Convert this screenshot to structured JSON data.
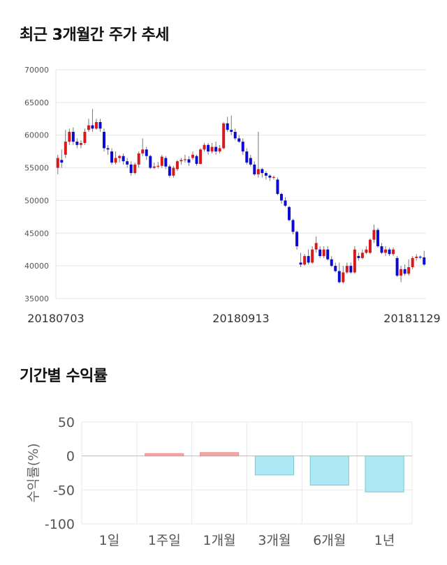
{
  "titles": {
    "price_trend": "최근 3개월간 주가 추세",
    "period_returns": "기간별 수익률"
  },
  "colors": {
    "up": "#d7191c",
    "down": "#0a0ad0",
    "bar_positive": "#f3a6a6",
    "bar_negative": "#ade8f4",
    "bar_negative_stroke": "#7cc8d6"
  },
  "chart_data": [
    {
      "type": "candlestick",
      "title": "최근 3개월간 주가 추세",
      "y_ticks": [
        "70000",
        "65000",
        "60000",
        "55000",
        "50000",
        "45000",
        "40000",
        "35000"
      ],
      "ylim": [
        35000,
        70000
      ],
      "x_labels": [
        "20180703",
        "20180913",
        "20181129"
      ],
      "grid": true,
      "candles": [
        [
          55000,
          56500,
          54000,
          57000
        ],
        [
          56200,
          55800,
          55000,
          57800
        ],
        [
          57000,
          59000,
          56500,
          60800
        ],
        [
          59000,
          60500,
          58500,
          61000
        ],
        [
          60500,
          59000,
          58500,
          61200
        ],
        [
          59000,
          58500,
          58000,
          59500
        ],
        [
          58500,
          58800,
          58000,
          59200
        ],
        [
          58800,
          60500,
          58500,
          61000
        ],
        [
          60800,
          61500,
          60500,
          62500
        ],
        [
          61500,
          61000,
          60500,
          64000
        ],
        [
          61000,
          62000,
          60800,
          62500
        ],
        [
          62000,
          61000,
          60500,
          62500
        ],
        [
          60500,
          58000,
          57500,
          61000
        ],
        [
          58000,
          57800,
          57000,
          58500
        ],
        [
          57500,
          55800,
          55500,
          58000
        ],
        [
          55800,
          56500,
          55500,
          57500
        ],
        [
          56500,
          56800,
          55800,
          57000
        ],
        [
          56800,
          56000,
          55500,
          57200
        ],
        [
          56000,
          55500,
          55000,
          56500
        ],
        [
          55500,
          54200,
          53800,
          56000
        ],
        [
          54200,
          55500,
          54000,
          55800
        ],
        [
          55500,
          57200,
          55000,
          57500
        ],
        [
          57200,
          57800,
          56800,
          59500
        ],
        [
          57800,
          56800,
          56200,
          58200
        ],
        [
          56800,
          55000,
          54800,
          57000
        ],
        [
          55000,
          55200,
          54800,
          55800
        ],
        [
          55200,
          55300,
          54900,
          55900
        ],
        [
          55300,
          56700,
          55000,
          57000
        ],
        [
          56500,
          55200,
          54800,
          56800
        ],
        [
          55200,
          53800,
          53500,
          55500
        ],
        [
          53800,
          55000,
          53500,
          55300
        ],
        [
          54800,
          56000,
          54500,
          56200
        ],
        [
          56000,
          56200,
          55500,
          56500
        ],
        [
          56200,
          56300,
          55800,
          57000
        ],
        [
          56300,
          55800,
          55300,
          56800
        ],
        [
          56500,
          57000,
          56200,
          57500
        ],
        [
          56800,
          55600,
          55300,
          57000
        ],
        [
          55600,
          57800,
          55500,
          58000
        ],
        [
          57800,
          58500,
          57500,
          58800
        ],
        [
          58500,
          57500,
          57000,
          58800
        ],
        [
          57500,
          58200,
          57200,
          58800
        ],
        [
          58200,
          57500,
          57000,
          59000
        ],
        [
          57500,
          58000,
          57200,
          58500
        ],
        [
          58000,
          61800,
          57800,
          62000
        ],
        [
          61800,
          60800,
          60500,
          62800
        ],
        [
          60800,
          60500,
          60000,
          63000
        ],
        [
          60500,
          59500,
          59200,
          61000
        ],
        [
          59500,
          59000,
          58800,
          60000
        ],
        [
          59000,
          57500,
          57000,
          59500
        ],
        [
          57500,
          55800,
          55500,
          58000
        ],
        [
          56500,
          55500,
          55200,
          57000
        ],
        [
          55500,
          54000,
          53800,
          56000
        ],
        [
          54000,
          54800,
          53500,
          60500
        ],
        [
          54800,
          54200,
          53500,
          55000
        ],
        [
          54200,
          53800,
          53200,
          54500
        ],
        [
          53800,
          53500,
          53000,
          54000
        ],
        [
          53500,
          53600,
          53200,
          53800
        ],
        [
          53200,
          51000,
          50800,
          53500
        ],
        [
          51000,
          50000,
          49500,
          51200
        ],
        [
          50000,
          49200,
          49000,
          50500
        ],
        [
          49000,
          47000,
          46800,
          49200
        ],
        [
          47000,
          45200,
          44800,
          47200
        ],
        [
          45200,
          43000,
          42500,
          45400
        ],
        [
          40500,
          40200,
          39800,
          42000
        ],
        [
          40200,
          41500,
          40000,
          41800
        ],
        [
          41500,
          40500,
          40200,
          42500
        ],
        [
          40500,
          42500,
          40300,
          43000
        ],
        [
          42500,
          43500,
          42000,
          44500
        ],
        [
          42500,
          41500,
          41200,
          43000
        ],
        [
          41500,
          42500,
          41200,
          43000
        ],
        [
          42500,
          41000,
          40800,
          43000
        ],
        [
          41000,
          40000,
          39800,
          41500
        ],
        [
          40000,
          39200,
          39000,
          40500
        ],
        [
          39200,
          37500,
          37300,
          40500
        ],
        [
          37500,
          39000,
          37300,
          40000
        ],
        [
          39000,
          40000,
          38800,
          40500
        ],
        [
          40000,
          39000,
          38800,
          40500
        ],
        [
          39000,
          42500,
          38800,
          43000
        ],
        [
          41500,
          41200,
          40800,
          42000
        ],
        [
          41200,
          42000,
          41000,
          42500
        ],
        [
          42000,
          42500,
          41800,
          43000
        ],
        [
          42000,
          44000,
          41800,
          44200
        ],
        [
          44000,
          45500,
          43500,
          46300
        ],
        [
          45500,
          43000,
          42800,
          45800
        ],
        [
          43000,
          42000,
          41800,
          43500
        ],
        [
          42000,
          42500,
          41500,
          43000
        ],
        [
          42500,
          41800,
          41500,
          42800
        ],
        [
          41800,
          42500,
          41500,
          42800
        ],
        [
          41200,
          38500,
          38300,
          41500
        ],
        [
          38500,
          39500,
          37500,
          40000
        ],
        [
          39500,
          38800,
          38500,
          40200
        ],
        [
          38800,
          39800,
          38500,
          41000
        ],
        [
          39800,
          41200,
          39500,
          41500
        ],
        [
          41200,
          41400,
          40800,
          41800
        ],
        [
          41400,
          41300,
          41000,
          41600
        ],
        [
          41300,
          40200,
          40000,
          42300
        ]
      ]
    },
    {
      "type": "bar",
      "title": "기간별 수익률",
      "categories": [
        "1일",
        "1주일",
        "1개월",
        "3개월",
        "6개월",
        "1년"
      ],
      "values": [
        0,
        3.5,
        5,
        -28,
        -43,
        -53
      ],
      "ylabel": "수익률(%)",
      "ylim": [
        -100,
        50
      ],
      "y_ticks": [
        "50",
        "0",
        "-50",
        "-100"
      ],
      "grid": true
    }
  ]
}
